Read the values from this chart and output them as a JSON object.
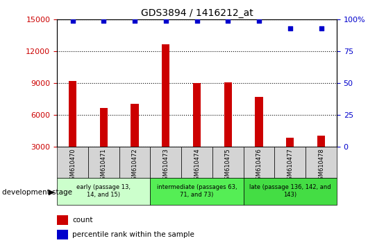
{
  "title": "GDS3894 / 1416212_at",
  "samples": [
    "GSM610470",
    "GSM610471",
    "GSM610472",
    "GSM610473",
    "GSM610474",
    "GSM610475",
    "GSM610476",
    "GSM610477",
    "GSM610478"
  ],
  "counts": [
    9200,
    6700,
    7100,
    12700,
    9000,
    9100,
    7700,
    3900,
    4100
  ],
  "percentile_ranks": [
    99,
    99,
    99,
    99,
    99,
    99,
    99,
    93,
    93
  ],
  "bar_color": "#cc0000",
  "dot_color": "#0000cc",
  "ylim_left": [
    3000,
    15000
  ],
  "yticks_left": [
    3000,
    6000,
    9000,
    12000,
    15000
  ],
  "ylim_right": [
    0,
    100
  ],
  "yticks_right": [
    0,
    25,
    50,
    75,
    100
  ],
  "ytick_right_labels": [
    "0",
    "25",
    "50",
    "75",
    "100%"
  ],
  "groups": [
    {
      "label": "early (passage 13,\n14, and 15)",
      "indices": [
        0,
        1,
        2
      ],
      "color": "#ccffcc"
    },
    {
      "label": "intermediate (passages 63,\n71, and 73)",
      "indices": [
        3,
        4,
        5
      ],
      "color": "#55ee55"
    },
    {
      "label": "late (passage 136, 142, and\n143)",
      "indices": [
        6,
        7,
        8
      ],
      "color": "#44dd44"
    }
  ],
  "tick_label_color_left": "#cc0000",
  "tick_label_color_right": "#0000cc",
  "legend_count_label": "count",
  "legend_percentile_label": "percentile rank within the sample",
  "dev_stage_label": "development stage",
  "sample_box_color": "#d4d4d4",
  "plot_bg": "#ffffff",
  "grid_color": "#000000"
}
